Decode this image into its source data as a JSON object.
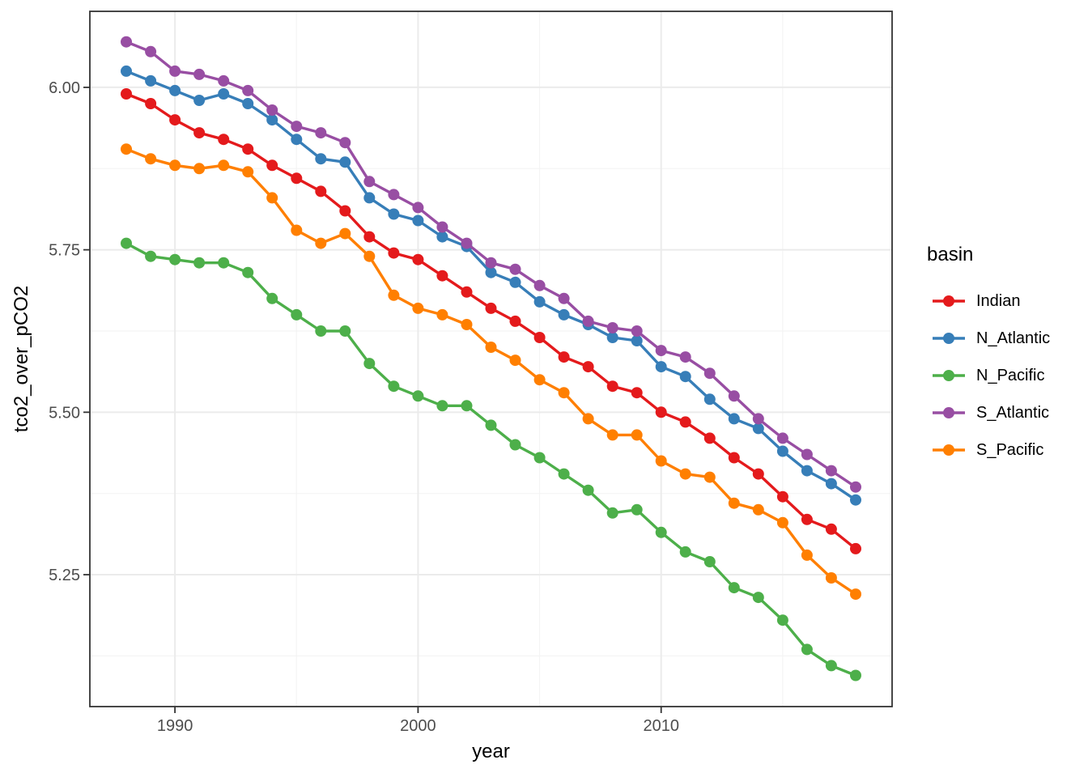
{
  "chart_data": {
    "type": "line",
    "title": "",
    "xlabel": "year",
    "ylabel": "tco2_over_pCO2",
    "x": [
      1988,
      1989,
      1990,
      1991,
      1992,
      1993,
      1994,
      1995,
      1996,
      1997,
      1998,
      1999,
      2000,
      2001,
      2002,
      2003,
      2004,
      2005,
      2006,
      2007,
      2008,
      2009,
      2010,
      2011,
      2012,
      2013,
      2014,
      2015,
      2016,
      2017,
      2018
    ],
    "series": [
      {
        "name": "Indian",
        "color": "#E41A1C",
        "values": [
          5.99,
          5.975,
          5.95,
          5.93,
          5.92,
          5.905,
          5.88,
          5.86,
          5.84,
          5.81,
          5.77,
          5.745,
          5.735,
          5.71,
          5.685,
          5.66,
          5.64,
          5.615,
          5.585,
          5.57,
          5.54,
          5.53,
          5.5,
          5.485,
          5.46,
          5.43,
          5.405,
          5.37,
          5.335,
          5.32,
          5.29
        ]
      },
      {
        "name": "N_Atlantic",
        "color": "#377EB8",
        "values": [
          6.025,
          6.01,
          5.995,
          5.98,
          5.99,
          5.975,
          5.95,
          5.92,
          5.89,
          5.885,
          5.83,
          5.805,
          5.795,
          5.77,
          5.755,
          5.715,
          5.7,
          5.67,
          5.65,
          5.635,
          5.615,
          5.61,
          5.57,
          5.555,
          5.52,
          5.49,
          5.475,
          5.44,
          5.41,
          5.39,
          5.365
        ]
      },
      {
        "name": "N_Pacific",
        "color": "#4DAF4A",
        "values": [
          5.76,
          5.74,
          5.735,
          5.73,
          5.73,
          5.715,
          5.675,
          5.65,
          5.625,
          5.625,
          5.575,
          5.54,
          5.525,
          5.51,
          5.51,
          5.48,
          5.45,
          5.43,
          5.405,
          5.38,
          5.345,
          5.35,
          5.315,
          5.285,
          5.27,
          5.23,
          5.215,
          5.18,
          5.135,
          5.11,
          5.095
        ]
      },
      {
        "name": "S_Atlantic",
        "color": "#984EA3",
        "values": [
          6.07,
          6.055,
          6.025,
          6.02,
          6.01,
          5.995,
          5.965,
          5.94,
          5.93,
          5.915,
          5.855,
          5.835,
          5.815,
          5.785,
          5.76,
          5.73,
          5.72,
          5.695,
          5.675,
          5.64,
          5.63,
          5.625,
          5.595,
          5.585,
          5.56,
          5.525,
          5.49,
          5.46,
          5.435,
          5.41,
          5.385
        ]
      },
      {
        "name": "S_Pacific",
        "color": "#FF7F00",
        "values": [
          5.905,
          5.89,
          5.88,
          5.875,
          5.88,
          5.87,
          5.83,
          5.78,
          5.76,
          5.775,
          5.74,
          5.68,
          5.66,
          5.65,
          5.635,
          5.6,
          5.58,
          5.55,
          5.53,
          5.49,
          5.465,
          5.465,
          5.425,
          5.405,
          5.4,
          5.36,
          5.35,
          5.33,
          5.28,
          5.245,
          5.22
        ]
      }
    ],
    "x_ticks": {
      "major": [
        1990,
        2000,
        2010
      ],
      "minor": [
        1995,
        2005,
        2015
      ],
      "labels": [
        "1990",
        "2000",
        "2010"
      ]
    },
    "y_ticks": {
      "major": [
        6.0,
        5.75,
        5.5,
        5.25
      ],
      "minor": [
        5.875,
        5.625,
        5.375,
        5.125
      ],
      "labels": [
        "6.00",
        "5.75",
        "5.50",
        "5.25"
      ]
    },
    "xlim": [
      1986.5,
      2019.5
    ],
    "ylim": [
      5.047,
      6.117
    ],
    "grid": true,
    "legend": {
      "title": "basin",
      "position": "right",
      "entries": [
        "Indian",
        "N_Atlantic",
        "N_Pacific",
        "S_Atlantic",
        "S_Pacific"
      ]
    }
  },
  "colors": {
    "background": "#FFFFFF",
    "panel_background": "#FFFFFF",
    "panel_border": "#333333",
    "grid_major": "#EBEBEB",
    "grid_minor": "#F4F4F4",
    "tick_mark": "#333333",
    "tick_text": "#4D4D4D",
    "axis_title_text": "#000000"
  }
}
